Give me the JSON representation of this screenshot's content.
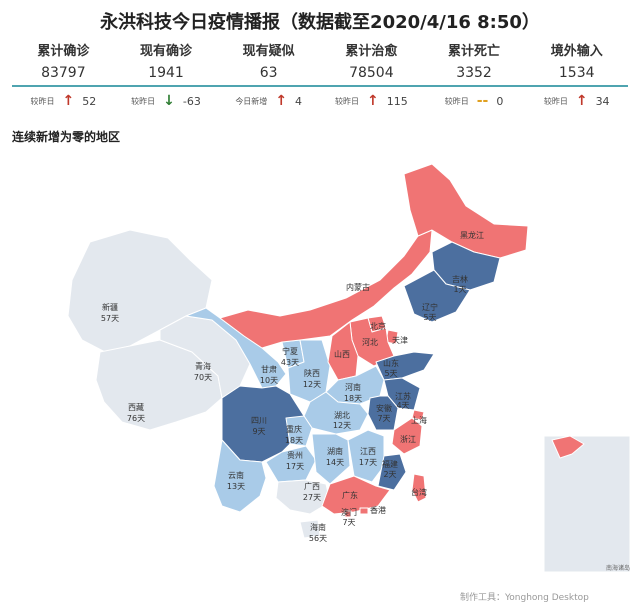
{
  "title": "永洪科技今日疫情播报（数据截至2020/4/16 8:50）",
  "stats": [
    {
      "label": "累计确诊",
      "value": "83797"
    },
    {
      "label": "现有确诊",
      "value": "1941"
    },
    {
      "label": "现有疑似",
      "value": "63"
    },
    {
      "label": "累计治愈",
      "value": "78504"
    },
    {
      "label": "累计死亡",
      "value": "3352"
    },
    {
      "label": "境外输入",
      "value": "1534"
    }
  ],
  "deltas": [
    {
      "caption": "较昨日",
      "arrow": "↑",
      "value": "52"
    },
    {
      "caption": "较昨日",
      "arrow": "↓",
      "value": "-63"
    },
    {
      "caption": "今日新增",
      "arrow": "↑",
      "value": "4"
    },
    {
      "caption": "较昨日",
      "arrow": "↑",
      "value": "115"
    },
    {
      "caption": "较昨日",
      "arrow": "--",
      "value": "0"
    },
    {
      "caption": "较昨日",
      "arrow": "↑",
      "value": "34"
    }
  ],
  "section_title": "连续新增为零的地区",
  "colors": {
    "new_cases": "#f07474",
    "long_zero": "#e3e8ee",
    "mid_zero": "#a9cbe8",
    "short_zero": "#4c6f9f",
    "rule": "#4fa4b0"
  },
  "regions": [
    {
      "name": "新疆",
      "days": "57天"
    },
    {
      "name": "西藏",
      "days": "76天"
    },
    {
      "name": "青海",
      "days": "70天"
    },
    {
      "name": "甘肃",
      "days": "10天"
    },
    {
      "name": "宁夏",
      "days": "43天"
    },
    {
      "name": "陕西",
      "days": "12天"
    },
    {
      "name": "内蒙古",
      "days": ""
    },
    {
      "name": "黑龙江",
      "days": ""
    },
    {
      "name": "吉林",
      "days": "1天"
    },
    {
      "name": "辽宁",
      "days": "5天"
    },
    {
      "name": "北京",
      "days": ""
    },
    {
      "name": "天津",
      "days": ""
    },
    {
      "name": "河北",
      "days": ""
    },
    {
      "name": "山西",
      "days": ""
    },
    {
      "name": "山东",
      "days": "5天"
    },
    {
      "name": "河南",
      "days": "18天"
    },
    {
      "name": "江苏",
      "days": "4天"
    },
    {
      "name": "安徽",
      "days": "7天"
    },
    {
      "name": "上海",
      "days": ""
    },
    {
      "name": "浙江",
      "days": ""
    },
    {
      "name": "湖北",
      "days": "12天"
    },
    {
      "name": "四川",
      "days": "9天"
    },
    {
      "name": "重庆",
      "days": "18天"
    },
    {
      "name": "贵州",
      "days": "17天"
    },
    {
      "name": "湖南",
      "days": "14天"
    },
    {
      "name": "江西",
      "days": "17天"
    },
    {
      "name": "福建",
      "days": "2天"
    },
    {
      "name": "云南",
      "days": "13天"
    },
    {
      "name": "广西",
      "days": "27天"
    },
    {
      "name": "广东",
      "days": ""
    },
    {
      "name": "澳门",
      "days": "7天"
    },
    {
      "name": "香港",
      "days": ""
    },
    {
      "name": "台湾",
      "days": ""
    },
    {
      "name": "海南",
      "days": "56天"
    }
  ],
  "inset_label": "南海诸岛",
  "footer": "制作工具：Yonghong Desktop"
}
